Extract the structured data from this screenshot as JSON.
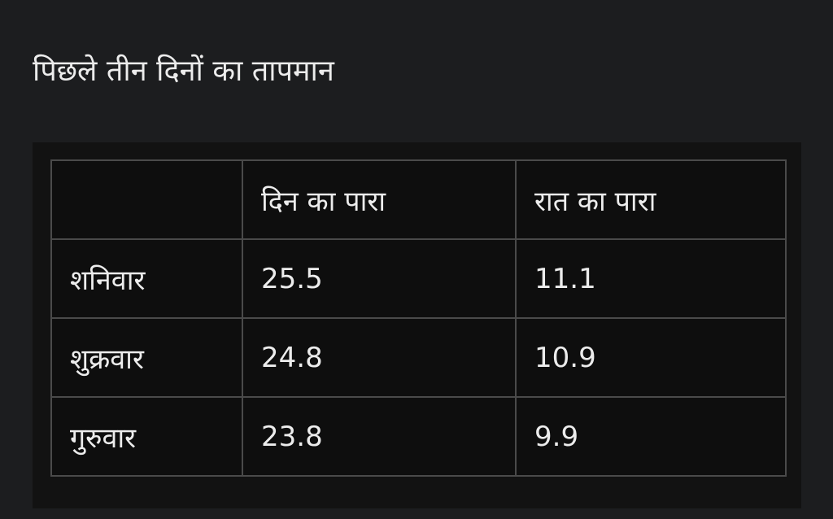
{
  "title": "पिछले तीन दिनों का तापमान",
  "table": {
    "header": [
      "दिन का पारा",
      "रात का पारा"
    ],
    "rows": [
      [
        "शनिवार",
        25.5,
        11.1
      ],
      [
        "शुक्रवार",
        24.8,
        10.9
      ],
      [
        "गुरुवार",
        23.8,
        9.9
      ]
    ]
  }
}
